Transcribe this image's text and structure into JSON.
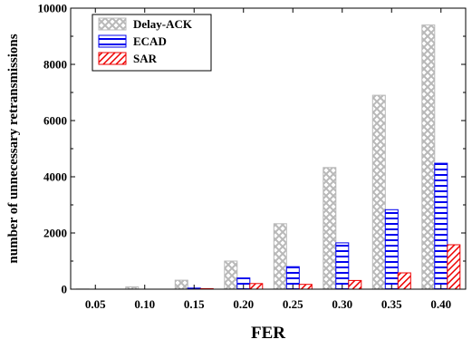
{
  "chart_data": {
    "type": "bar",
    "xlabel": "FER",
    "ylabel": "number of unnecessary retransmissions",
    "categories": [
      "0.05",
      "0.10",
      "0.15",
      "0.20",
      "0.25",
      "0.30",
      "0.35",
      "0.40"
    ],
    "ylim": [
      0,
      10000
    ],
    "yticks": [
      "0",
      "2000",
      "4000",
      "6000",
      "8000",
      "10000"
    ],
    "grid": false,
    "legend_position": "top-left",
    "series": [
      {
        "name": "Delay-ACK",
        "pattern": "crosshatch",
        "color": "#b8b8b8",
        "values": [
          5,
          80,
          320,
          1000,
          2330,
          4330,
          6900,
          9400
        ]
      },
      {
        "name": "ECAD",
        "pattern": "horizontal",
        "color": "#0000ee",
        "values": [
          0,
          0,
          40,
          400,
          800,
          1650,
          2830,
          4480
        ]
      },
      {
        "name": "SAR",
        "pattern": "diagonal",
        "color": "#ee0000",
        "values": [
          0,
          0,
          20,
          200,
          170,
          310,
          580,
          1580
        ]
      }
    ]
  }
}
